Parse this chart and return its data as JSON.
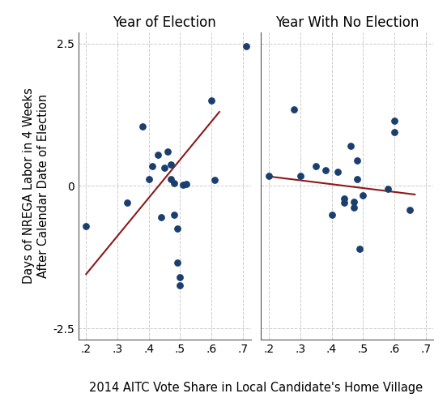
{
  "left_title": "Year of Election",
  "right_title": "Year With No Election",
  "xlabel": "2014 AITC Vote Share in Local Candidate's Home Village",
  "ylabel": "Days of NREGA Labor in 4 Weeks\nAfter Calendar Date of Election",
  "dot_color": "#1a3f6f",
  "line_color": "#8B1A1A",
  "ylim": [
    -2.7,
    2.7
  ],
  "xlim_left": [
    0.175,
    0.725
  ],
  "xlim_right": [
    0.175,
    0.725
  ],
  "xticks_left": [
    0.2,
    0.3,
    0.4,
    0.5,
    0.6,
    0.7
  ],
  "xticks_right": [
    0.2,
    0.3,
    0.4,
    0.5,
    0.6,
    0.7
  ],
  "xtick_labels_left": [
    ".2",
    ".3",
    ".4",
    ".5",
    ".6",
    ".7"
  ],
  "xtick_labels_right": [
    ".2",
    ".3",
    ".4",
    ".5",
    ".6",
    ".7"
  ],
  "yticks": [
    -2.5,
    0,
    2.5
  ],
  "ytick_labels": [
    "-2.5",
    "0",
    "2.5"
  ],
  "left_x": [
    0.2,
    0.33,
    0.38,
    0.4,
    0.41,
    0.43,
    0.44,
    0.45,
    0.46,
    0.47,
    0.47,
    0.48,
    0.48,
    0.49,
    0.49,
    0.5,
    0.5,
    0.51,
    0.52,
    0.6,
    0.61,
    0.71
  ],
  "left_y": [
    -0.7,
    -0.3,
    1.05,
    0.12,
    0.35,
    0.55,
    -0.55,
    0.32,
    0.6,
    0.12,
    0.38,
    0.05,
    -0.5,
    -0.75,
    -1.35,
    -1.75,
    -1.6,
    0.02,
    0.04,
    1.5,
    0.1,
    2.45
  ],
  "right_x": [
    0.2,
    0.28,
    0.3,
    0.35,
    0.38,
    0.4,
    0.42,
    0.44,
    0.44,
    0.46,
    0.47,
    0.47,
    0.48,
    0.48,
    0.49,
    0.5,
    0.58,
    0.6,
    0.6,
    0.65
  ],
  "right_y": [
    0.17,
    1.35,
    0.17,
    0.35,
    0.28,
    -0.5,
    0.25,
    -0.22,
    -0.3,
    0.7,
    -0.28,
    -0.38,
    0.45,
    0.12,
    -1.1,
    -0.17,
    -0.05,
    1.15,
    0.95,
    -0.42
  ],
  "left_line_x": [
    0.2,
    0.625
  ],
  "left_line_y": [
    -1.55,
    1.3
  ],
  "right_line_x": [
    0.195,
    0.665
  ],
  "right_line_y": [
    0.17,
    -0.15
  ],
  "title_fontsize": 12,
  "label_fontsize": 10.5,
  "tick_fontsize": 10,
  "dot_size": 28,
  "line_width": 1.5,
  "background_color": "#FFFFFF",
  "grid_color": "#CCCCCC"
}
